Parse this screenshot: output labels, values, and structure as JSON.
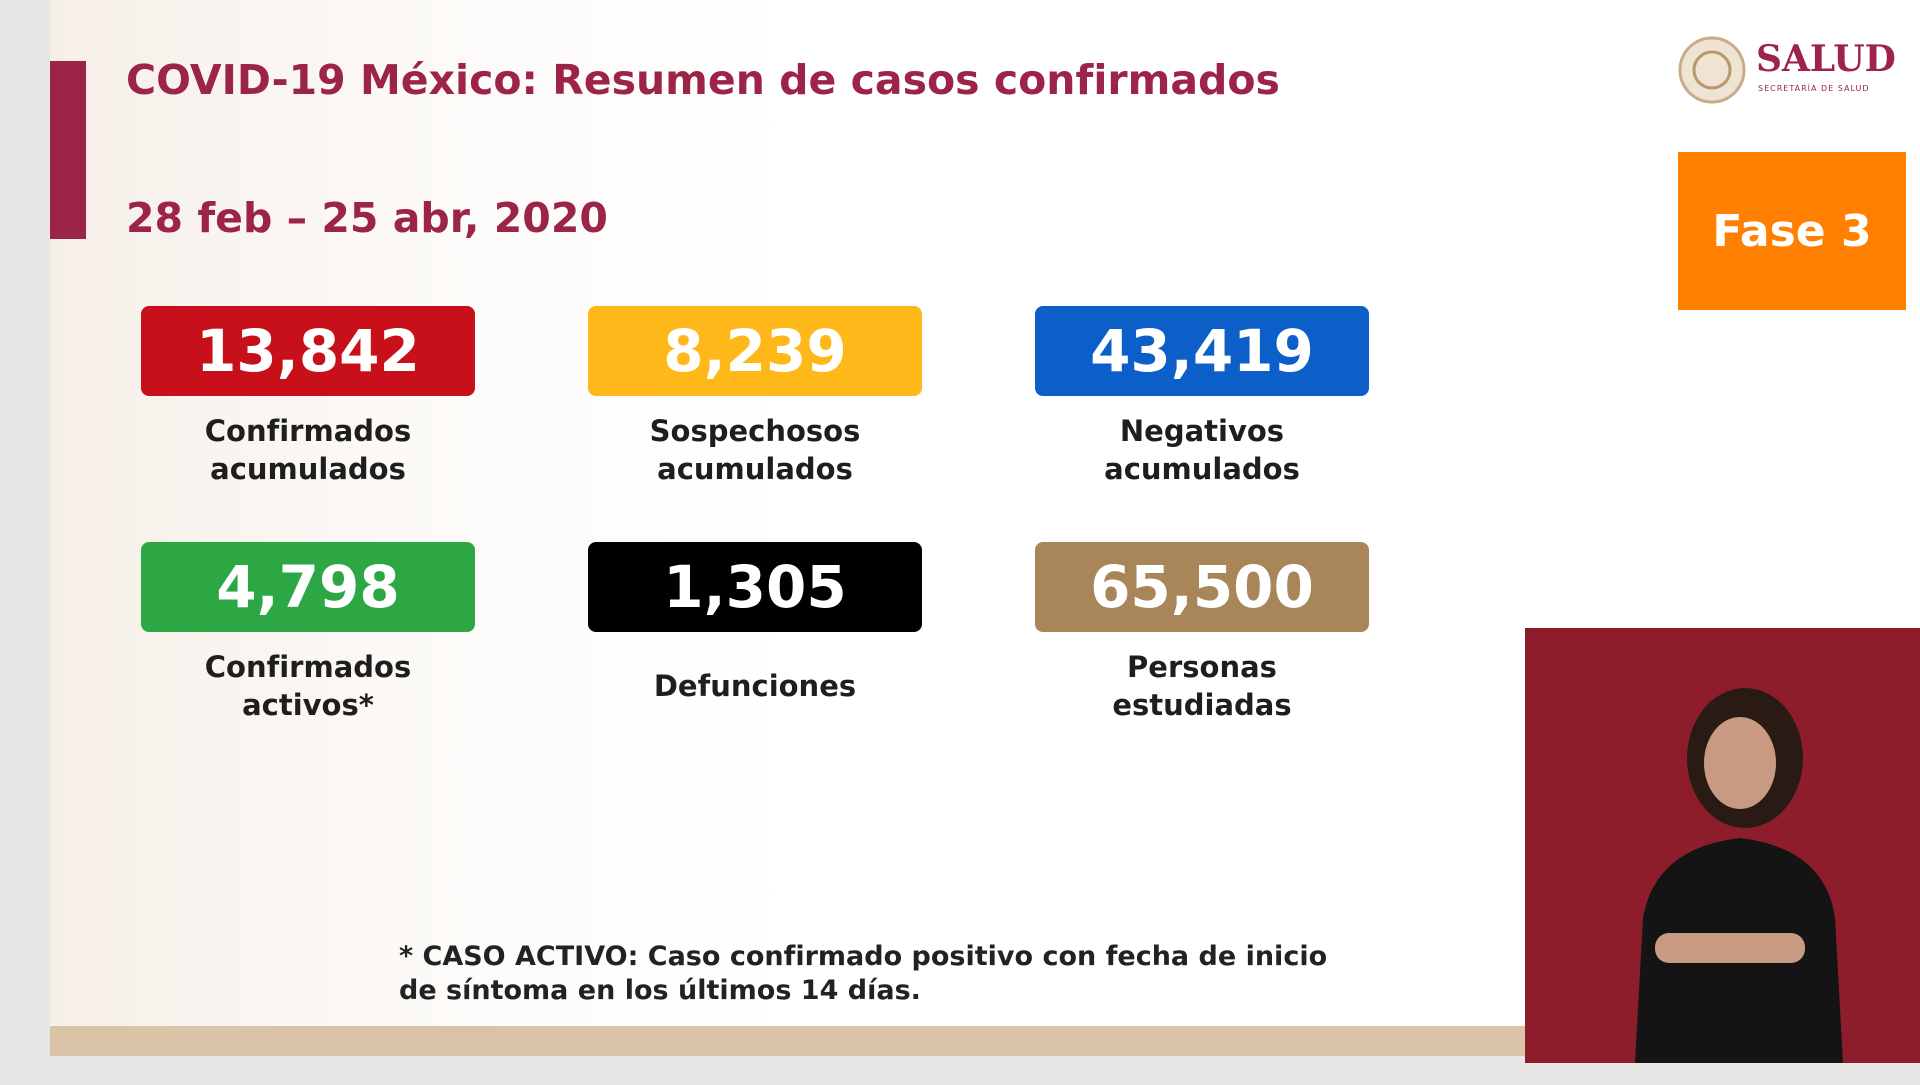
{
  "header": {
    "title": "COVID-19 México: Resumen de casos confirmados",
    "date": "28 feb – 25 abr, 2020"
  },
  "logo": {
    "name": "SALUD",
    "subtitle": "SECRETARÍA DE SALUD"
  },
  "phase": "Fase 3",
  "cards": [
    {
      "value": "13,842",
      "label": [
        "Confirmados",
        "acumulados"
      ],
      "color": "#c8101a"
    },
    {
      "value": "8,239",
      "label": [
        "Sospechosos",
        "acumulados"
      ],
      "color": "#ffb819"
    },
    {
      "value": "43,419",
      "label": [
        "Negativos",
        "acumulados"
      ],
      "color": "#0c5fc8"
    },
    {
      "value": "4,798",
      "label": [
        "Confirmados",
        "activos*"
      ],
      "color": "#2ca744"
    },
    {
      "value": "1,305",
      "label": [
        "Defunciones"
      ],
      "color": "#000000"
    },
    {
      "value": "65,500",
      "label": [
        "Personas",
        "estudiadas"
      ],
      "color": "#a8865a"
    }
  ],
  "footnote": [
    "* CASO ACTIVO: Caso confirmado positivo con fecha de inicio",
    "de síntoma en los últimos 14 días."
  ]
}
